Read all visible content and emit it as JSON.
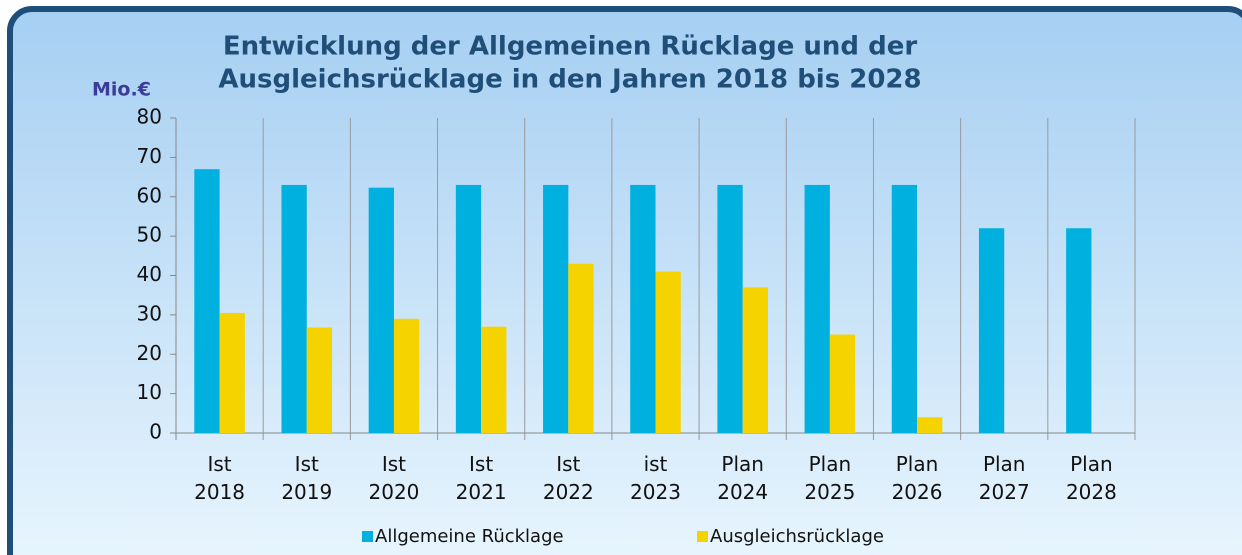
{
  "chart_data": {
    "type": "bar",
    "title": [
      "Entwicklung der Allgemeinen Rücklage und der",
      "Ausgleichsrücklage in den Jahren 2018 bis 2028"
    ],
    "y_label": "Mio.€",
    "categories": [
      "Ist 2018",
      "Ist 2019",
      "Ist 2020",
      "Ist 2021",
      "Ist 2022",
      "ist 2023",
      "Plan 2024",
      "Plan 2025",
      "Plan 2026",
      "Plan 2027",
      "Plan 2028"
    ],
    "series": [
      {
        "name": "Allgemeine Rücklage",
        "color": "#00b0df",
        "values": [
          67,
          63,
          62.3,
          63,
          63,
          63,
          63,
          63,
          63,
          52,
          52
        ]
      },
      {
        "name": "Ausgleichsrücklage",
        "color": "#f5d300",
        "values": [
          30.5,
          26.8,
          29,
          27,
          43,
          41,
          37,
          25,
          4,
          null,
          null
        ]
      }
    ],
    "ylim": [
      0,
      80
    ],
    "yticks": [
      0,
      10,
      20,
      30,
      40,
      50,
      60,
      70,
      80
    ],
    "grid": true,
    "legend": "bottom"
  }
}
